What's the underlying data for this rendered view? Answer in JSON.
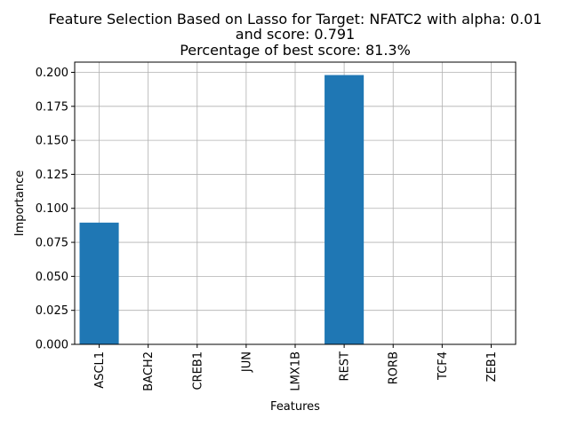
{
  "chart_data": {
    "type": "bar",
    "title_lines": [
      "Feature Selection Based on Lasso for Target: NFATC2 with alpha: 0.01",
      "and score: 0.791",
      "Percentage of best score: 81.3%"
    ],
    "xlabel": "Features",
    "ylabel": "Importance",
    "categories": [
      "ASCL1",
      "BACH2",
      "CREB1",
      "JUN",
      "LMX1B",
      "REST",
      "RORB",
      "TCF4",
      "ZEB1"
    ],
    "values": [
      0.0895,
      0,
      0,
      0,
      0,
      0.198,
      0,
      0,
      0
    ],
    "ylim": [
      0,
      0.2075
    ],
    "yticks": [
      "0.000",
      "0.025",
      "0.050",
      "0.075",
      "0.100",
      "0.125",
      "0.150",
      "0.175",
      "0.200"
    ],
    "grid": true,
    "bar_color": "#1f77b4",
    "grid_color": "#b0b0b0"
  }
}
